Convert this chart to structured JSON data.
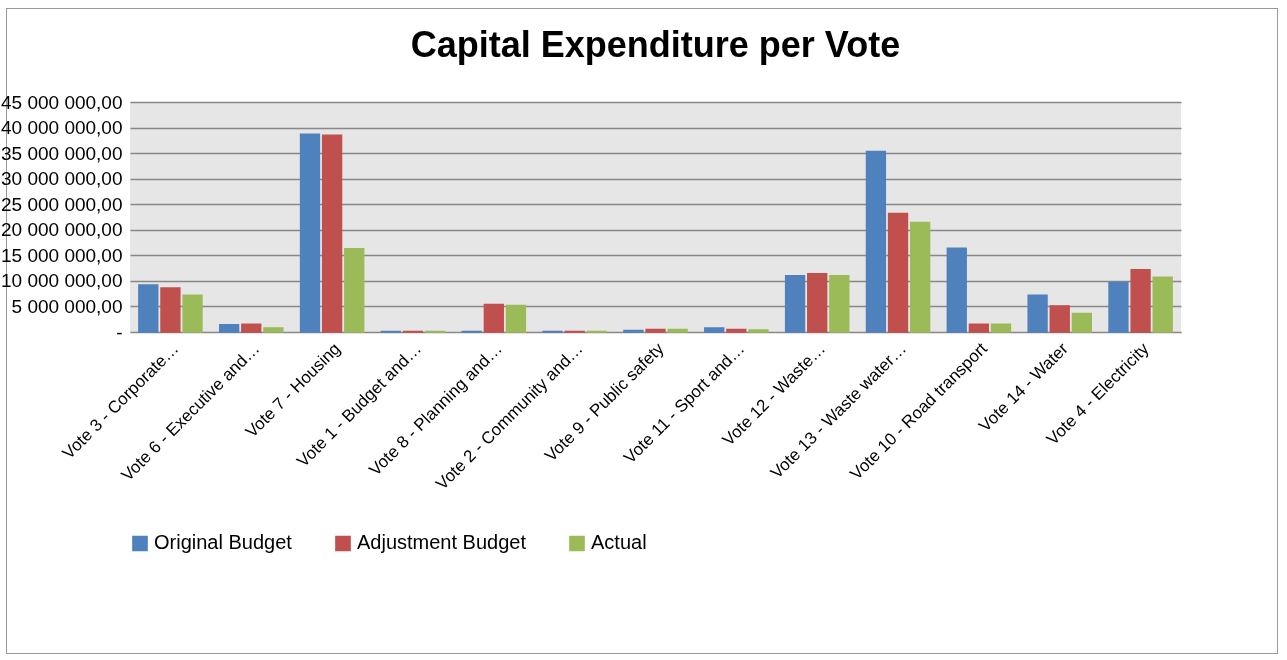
{
  "chart_data": {
    "type": "bar",
    "title": "Capital Expenditure per Vote",
    "categories": [
      "Vote 3 - Corporate…",
      "Vote 6 - Executive and…",
      "Vote 7 - Housing",
      "Vote 1 - Budget and…",
      "Vote 8 - Planning and…",
      "Vote 2 - Community and…",
      "Vote 9 - Public safety",
      "Vote 11 - Sport and…",
      "Vote 12 - Waste…",
      "Vote 13 - Waste water…",
      "Vote 10 - Road transport",
      "Vote 14 - Water",
      "Vote 4 - Electricity"
    ],
    "series": [
      {
        "name": "Original Budget",
        "color": "#4f81bd",
        "values": [
          9200000,
          1400000,
          38700000,
          100000,
          100000,
          100000,
          300000,
          800000,
          11000000,
          35300000,
          16400000,
          7200000,
          9700000
        ]
      },
      {
        "name": "Adjustment Budget",
        "color": "#c0504d",
        "values": [
          8600000,
          1500000,
          38500000,
          100000,
          5400000,
          100000,
          500000,
          500000,
          11400000,
          23200000,
          1500000,
          5100000,
          12200000
        ]
      },
      {
        "name": "Actual",
        "color": "#9bbb59",
        "values": [
          7200000,
          800000,
          16300000,
          100000,
          5200000,
          100000,
          500000,
          400000,
          11000000,
          21400000,
          1500000,
          3600000,
          10700000
        ]
      }
    ],
    "ylim": [
      0,
      45000000
    ],
    "yticks": [
      {
        "value": 0,
        "label": "-"
      },
      {
        "value": 5000000,
        "label": "5 000 000,00"
      },
      {
        "value": 10000000,
        "label": "10 000 000,00"
      },
      {
        "value": 15000000,
        "label": "15 000 000,00"
      },
      {
        "value": 20000000,
        "label": "20 000 000,00"
      },
      {
        "value": 25000000,
        "label": "25 000 000,00"
      },
      {
        "value": 30000000,
        "label": "30 000 000,00"
      },
      {
        "value": 35000000,
        "label": "35 000 000,00"
      },
      {
        "value": 40000000,
        "label": "40 000 000,00"
      },
      {
        "value": 45000000,
        "label": "45 000 000,00"
      }
    ],
    "grid": "y",
    "legend": "bottom"
  }
}
